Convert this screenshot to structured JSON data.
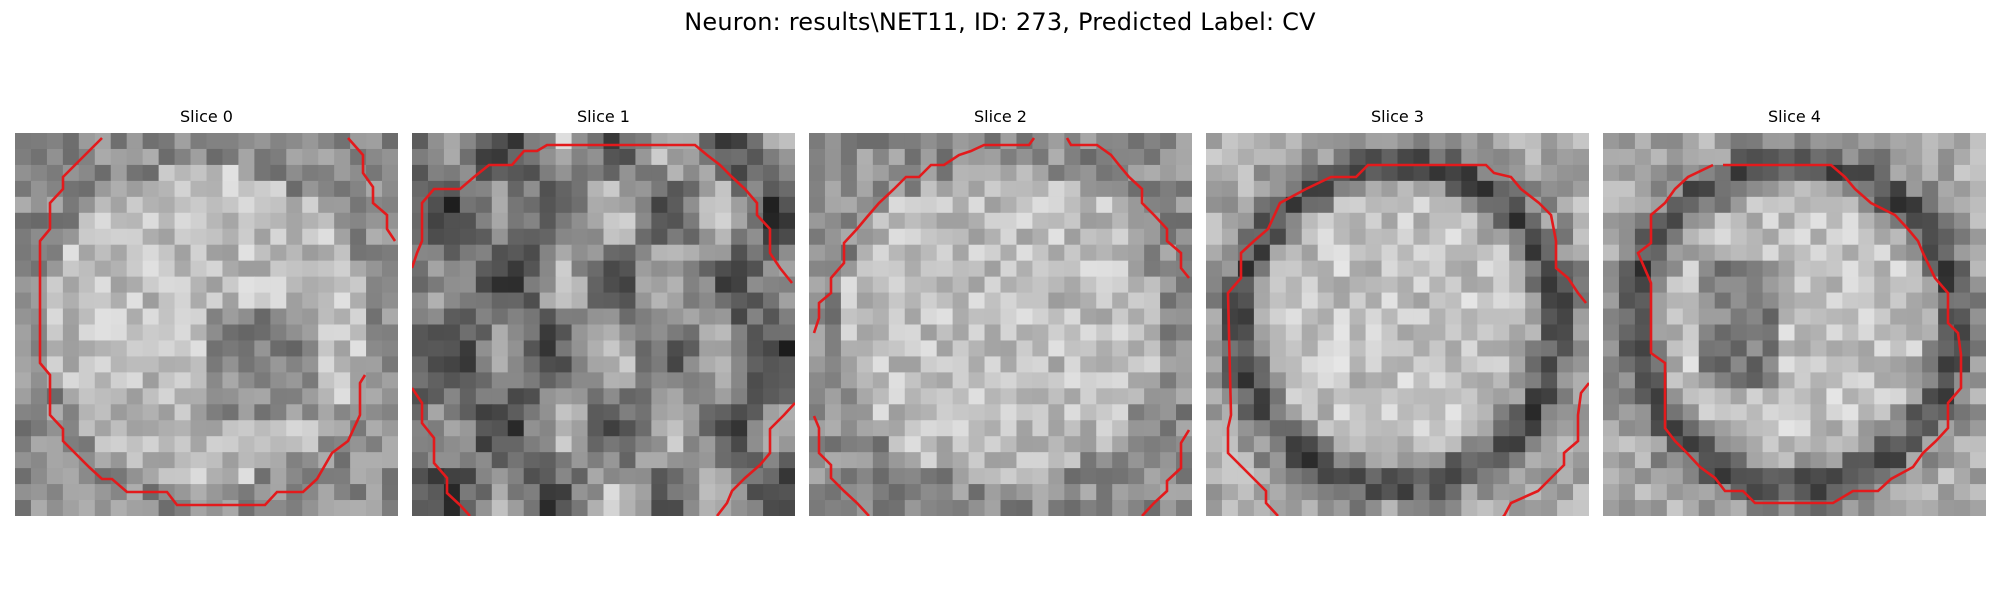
{
  "figure": {
    "title": "Neuron: results\\NET11, ID: 273, Predicted Label: CV"
  },
  "panels": [
    {
      "title": "Slice 0"
    },
    {
      "title": "Slice 1"
    },
    {
      "title": "Slice 2"
    },
    {
      "title": "Slice 3"
    },
    {
      "title": "Slice 4"
    }
  ],
  "colors": {
    "contour": "#e31a1c"
  }
}
